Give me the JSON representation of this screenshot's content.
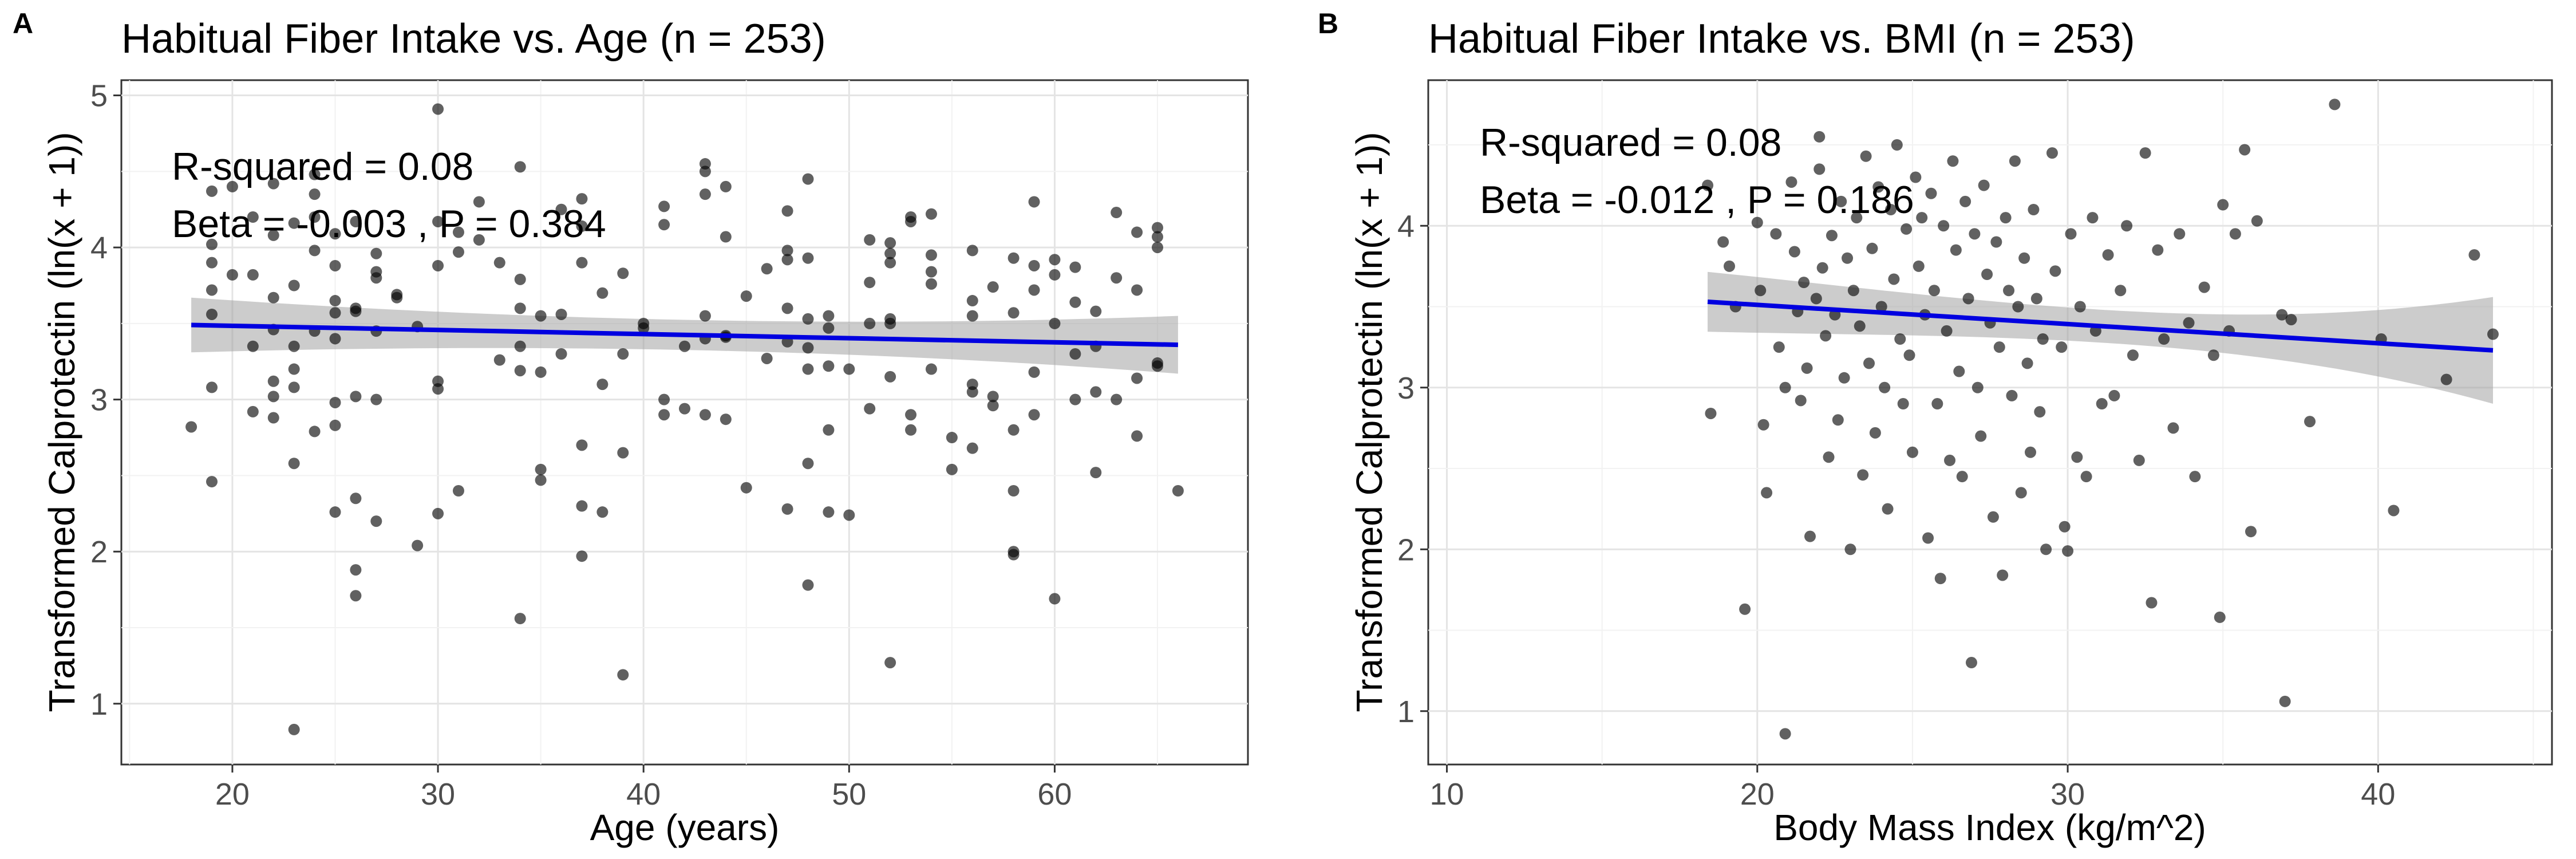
{
  "chart_data": [
    {
      "panel_label": "A",
      "type": "scatter",
      "title": "Habitual Fiber Intake vs. Age (n = 253)",
      "xlabel": "Age (years)",
      "ylabel": "Transformed Calprotectin (ln(x + 1))",
      "xlim": [
        14.6,
        69.4
      ],
      "ylim": [
        0.6,
        5.1
      ],
      "xticks": [
        20,
        30,
        40,
        50,
        60
      ],
      "yticks": [
        1,
        2,
        3,
        4,
        5
      ],
      "grid": true,
      "annotations": [
        "R-squared = 0.08",
        "Beta = -0.003 , P =  0.384"
      ],
      "fit": {
        "x": [
          18,
          66
        ],
        "y": [
          3.49,
          3.36
        ],
        "ci_lower": [
          3.31,
          3.17
        ],
        "ci_upper": [
          3.67,
          3.55
        ]
      },
      "points": [
        [
          18,
          2.82
        ],
        [
          19,
          4.37
        ],
        [
          19,
          4.02
        ],
        [
          19,
          3.9
        ],
        [
          19,
          3.72
        ],
        [
          19,
          3.56
        ],
        [
          19,
          3.08
        ],
        [
          19,
          2.46
        ],
        [
          20,
          4.4
        ],
        [
          20,
          3.82
        ],
        [
          21,
          4.2
        ],
        [
          21,
          3.82
        ],
        [
          21,
          3.35
        ],
        [
          21,
          2.92
        ],
        [
          22,
          4.08
        ],
        [
          22,
          4.42
        ],
        [
          22,
          3.67
        ],
        [
          22,
          3.46
        ],
        [
          22,
          3.12
        ],
        [
          22,
          3.02
        ],
        [
          22,
          2.88
        ],
        [
          23,
          4.16
        ],
        [
          23,
          3.75
        ],
        [
          23,
          3.35
        ],
        [
          23,
          3.2
        ],
        [
          23,
          3.08
        ],
        [
          23,
          2.58
        ],
        [
          23,
          0.83
        ],
        [
          24,
          4.48
        ],
        [
          24,
          4.35
        ],
        [
          24,
          4.2
        ],
        [
          24,
          3.98
        ],
        [
          24,
          3.45
        ],
        [
          24,
          2.79
        ],
        [
          25,
          4.09
        ],
        [
          25,
          3.88
        ],
        [
          25,
          3.65
        ],
        [
          25,
          3.57
        ],
        [
          25,
          3.4
        ],
        [
          25,
          2.98
        ],
        [
          25,
          2.83
        ],
        [
          25,
          2.26
        ],
        [
          26,
          4.17
        ],
        [
          26,
          3.6
        ],
        [
          26,
          3.58
        ],
        [
          26,
          3.02
        ],
        [
          26,
          2.35
        ],
        [
          26,
          1.88
        ],
        [
          26,
          1.71
        ],
        [
          27,
          3.96
        ],
        [
          27,
          3.84
        ],
        [
          27,
          3.8
        ],
        [
          27,
          3.45
        ],
        [
          27,
          3.0
        ],
        [
          27,
          2.2
        ],
        [
          28,
          3.69
        ],
        [
          28,
          3.67
        ],
        [
          29,
          3.48
        ],
        [
          29,
          2.04
        ],
        [
          30,
          4.91
        ],
        [
          30,
          4.17
        ],
        [
          30,
          3.88
        ],
        [
          30,
          3.12
        ],
        [
          30,
          3.07
        ],
        [
          30,
          2.25
        ],
        [
          31,
          4.1
        ],
        [
          31,
          3.97
        ],
        [
          31,
          2.4
        ],
        [
          32,
          4.3
        ],
        [
          32,
          4.05
        ],
        [
          33,
          3.9
        ],
        [
          33,
          3.26
        ],
        [
          34,
          4.53
        ],
        [
          34,
          3.79
        ],
        [
          34,
          3.6
        ],
        [
          34,
          3.35
        ],
        [
          34,
          3.19
        ],
        [
          34,
          1.56
        ],
        [
          35,
          3.55
        ],
        [
          35,
          3.18
        ],
        [
          35,
          2.54
        ],
        [
          35,
          2.47
        ],
        [
          36,
          4.25
        ],
        [
          36,
          3.56
        ],
        [
          36,
          3.3
        ],
        [
          37,
          4.32
        ],
        [
          37,
          4.14
        ],
        [
          37,
          3.9
        ],
        [
          37,
          2.7
        ],
        [
          37,
          2.3
        ],
        [
          37,
          1.97
        ],
        [
          38,
          3.7
        ],
        [
          38,
          3.1
        ],
        [
          38,
          2.26
        ],
        [
          39,
          3.83
        ],
        [
          39,
          3.3
        ],
        [
          39,
          2.65
        ],
        [
          39,
          1.19
        ],
        [
          40,
          3.5
        ],
        [
          40,
          3.47
        ],
        [
          41,
          4.27
        ],
        [
          41,
          4.15
        ],
        [
          41,
          3.0
        ],
        [
          41,
          2.9
        ],
        [
          42,
          3.35
        ],
        [
          42,
          2.94
        ],
        [
          43,
          4.55
        ],
        [
          43,
          4.5
        ],
        [
          43,
          4.35
        ],
        [
          43,
          3.55
        ],
        [
          43,
          3.4
        ],
        [
          43,
          2.9
        ],
        [
          44,
          4.4
        ],
        [
          44,
          4.07
        ],
        [
          44,
          3.42
        ],
        [
          44,
          3.41
        ],
        [
          44,
          2.87
        ],
        [
          45,
          3.68
        ],
        [
          45,
          2.42
        ],
        [
          46,
          3.86
        ],
        [
          46,
          3.27
        ],
        [
          47,
          4.24
        ],
        [
          47,
          3.98
        ],
        [
          47,
          3.92
        ],
        [
          47,
          3.6
        ],
        [
          47,
          3.38
        ],
        [
          47,
          2.28
        ],
        [
          48,
          4.45
        ],
        [
          48,
          3.93
        ],
        [
          48,
          3.53
        ],
        [
          48,
          3.34
        ],
        [
          48,
          3.2
        ],
        [
          48,
          2.58
        ],
        [
          48,
          1.78
        ],
        [
          49,
          3.55
        ],
        [
          49,
          3.47
        ],
        [
          49,
          3.22
        ],
        [
          49,
          2.8
        ],
        [
          49,
          2.26
        ],
        [
          50,
          3.2
        ],
        [
          50,
          2.24
        ],
        [
          51,
          4.05
        ],
        [
          51,
          3.77
        ],
        [
          51,
          3.5
        ],
        [
          51,
          2.94
        ],
        [
          52,
          4.03
        ],
        [
          52,
          3.96
        ],
        [
          52,
          3.9
        ],
        [
          52,
          3.53
        ],
        [
          52,
          3.5
        ],
        [
          52,
          3.15
        ],
        [
          52,
          1.27
        ],
        [
          53,
          4.2
        ],
        [
          53,
          4.17
        ],
        [
          53,
          2.9
        ],
        [
          53,
          2.8
        ],
        [
          54,
          4.22
        ],
        [
          54,
          3.95
        ],
        [
          54,
          3.84
        ],
        [
          54,
          3.76
        ],
        [
          54,
          3.2
        ],
        [
          55,
          2.75
        ],
        [
          55,
          2.54
        ],
        [
          56,
          3.98
        ],
        [
          56,
          3.65
        ],
        [
          56,
          3.55
        ],
        [
          56,
          3.1
        ],
        [
          56,
          3.05
        ],
        [
          56,
          2.68
        ],
        [
          57,
          3.74
        ],
        [
          57,
          3.02
        ],
        [
          57,
          2.96
        ],
        [
          58,
          3.93
        ],
        [
          58,
          3.57
        ],
        [
          58,
          2.8
        ],
        [
          58,
          2.4
        ],
        [
          58,
          2.0
        ],
        [
          58,
          1.98
        ],
        [
          59,
          4.3
        ],
        [
          59,
          3.88
        ],
        [
          59,
          3.72
        ],
        [
          59,
          3.18
        ],
        [
          59,
          2.9
        ],
        [
          60,
          3.92
        ],
        [
          60,
          3.82
        ],
        [
          60,
          3.5
        ],
        [
          60,
          1.69
        ],
        [
          61,
          3.87
        ],
        [
          61,
          3.64
        ],
        [
          61,
          3.3
        ],
        [
          61,
          3.0
        ],
        [
          62,
          3.58
        ],
        [
          62,
          3.35
        ],
        [
          62,
          3.05
        ],
        [
          62,
          2.52
        ],
        [
          63,
          4.23
        ],
        [
          63,
          3.8
        ],
        [
          63,
          3.0
        ],
        [
          64,
          4.1
        ],
        [
          64,
          3.72
        ],
        [
          64,
          3.14
        ],
        [
          64,
          2.76
        ],
        [
          65,
          4.13
        ],
        [
          65,
          4.07
        ],
        [
          65,
          4.0
        ],
        [
          65,
          3.24
        ],
        [
          65,
          3.22
        ],
        [
          66,
          2.4
        ]
      ]
    },
    {
      "panel_label": "B",
      "type": "scatter",
      "title": "Habitual Fiber Intake vs. BMI (n = 253)",
      "xlabel": "Body Mass Index (kg/m^2)",
      "ylabel": "Transformed Calprotectin (ln(x + 1))",
      "xlim": [
        9.4,
        45.6
      ],
      "ylim": [
        0.67,
        4.9
      ],
      "xticks": [
        10,
        20,
        30,
        40
      ],
      "yticks": [
        1,
        2,
        3,
        4
      ],
      "grid": true,
      "annotations": [
        "R-squared = 0.08",
        "Beta = -0.012 , P =  0.186"
      ],
      "fit": {
        "x": [
          18.4,
          43.7
        ],
        "y": [
          3.53,
          3.23
        ],
        "ci_lower": [
          3.35,
          2.9
        ],
        "ci_upper": [
          3.72,
          3.56
        ]
      },
      "points": [
        [
          18.4,
          4.25
        ],
        [
          18.5,
          2.84
        ],
        [
          18.9,
          3.9
        ],
        [
          19.1,
          3.75
        ],
        [
          19.3,
          3.5
        ],
        [
          19.6,
          1.63
        ],
        [
          20.0,
          4.02
        ],
        [
          20.1,
          3.6
        ],
        [
          20.2,
          2.77
        ],
        [
          20.3,
          2.35
        ],
        [
          20.6,
          3.95
        ],
        [
          20.7,
          3.25
        ],
        [
          20.9,
          3.0
        ],
        [
          20.9,
          0.86
        ],
        [
          21.1,
          4.27
        ],
        [
          21.2,
          3.84
        ],
        [
          21.3,
          3.47
        ],
        [
          21.4,
          2.92
        ],
        [
          21.5,
          3.65
        ],
        [
          21.6,
          3.12
        ],
        [
          21.7,
          2.08
        ],
        [
          21.9,
          3.55
        ],
        [
          22.0,
          4.35
        ],
        [
          22.0,
          4.55
        ],
        [
          22.1,
          3.74
        ],
        [
          22.2,
          3.32
        ],
        [
          22.3,
          2.57
        ],
        [
          22.4,
          3.94
        ],
        [
          22.5,
          3.45
        ],
        [
          22.6,
          2.8
        ],
        [
          22.7,
          4.15
        ],
        [
          22.8,
          3.06
        ],
        [
          22.9,
          3.8
        ],
        [
          23.0,
          2.0
        ],
        [
          23.1,
          3.6
        ],
        [
          23.2,
          4.05
        ],
        [
          23.3,
          3.38
        ],
        [
          23.4,
          2.46
        ],
        [
          23.5,
          4.43
        ],
        [
          23.6,
          3.15
        ],
        [
          23.7,
          3.86
        ],
        [
          23.8,
          2.72
        ],
        [
          23.9,
          4.24
        ],
        [
          24.0,
          3.5
        ],
        [
          24.1,
          3.0
        ],
        [
          24.2,
          2.25
        ],
        [
          24.3,
          4.1
        ],
        [
          24.4,
          3.67
        ],
        [
          24.5,
          4.5
        ],
        [
          24.6,
          3.3
        ],
        [
          24.7,
          2.9
        ],
        [
          24.8,
          3.98
        ],
        [
          24.9,
          3.2
        ],
        [
          25.0,
          2.6
        ],
        [
          25.1,
          4.3
        ],
        [
          25.2,
          3.75
        ],
        [
          25.3,
          4.05
        ],
        [
          25.4,
          3.45
        ],
        [
          25.5,
          2.07
        ],
        [
          25.6,
          4.2
        ],
        [
          25.7,
          3.6
        ],
        [
          25.8,
          2.9
        ],
        [
          25.9,
          1.82
        ],
        [
          26.0,
          4.0
        ],
        [
          26.1,
          3.35
        ],
        [
          26.2,
          2.55
        ],
        [
          26.3,
          4.4
        ],
        [
          26.4,
          3.85
        ],
        [
          26.5,
          3.1
        ],
        [
          26.6,
          2.45
        ],
        [
          26.7,
          4.15
        ],
        [
          26.8,
          3.55
        ],
        [
          26.9,
          1.3
        ],
        [
          27.0,
          3.95
        ],
        [
          27.1,
          3.0
        ],
        [
          27.2,
          2.7
        ],
        [
          27.3,
          4.25
        ],
        [
          27.4,
          3.7
        ],
        [
          27.5,
          3.4
        ],
        [
          27.6,
          2.2
        ],
        [
          27.7,
          3.9
        ],
        [
          27.8,
          3.25
        ],
        [
          27.9,
          1.84
        ],
        [
          28.0,
          4.05
        ],
        [
          28.1,
          3.6
        ],
        [
          28.2,
          2.95
        ],
        [
          28.3,
          4.4
        ],
        [
          28.4,
          3.5
        ],
        [
          28.5,
          2.35
        ],
        [
          28.6,
          3.8
        ],
        [
          28.7,
          3.15
        ],
        [
          28.8,
          2.6
        ],
        [
          28.9,
          4.1
        ],
        [
          29.0,
          3.55
        ],
        [
          29.1,
          2.85
        ],
        [
          29.2,
          3.3
        ],
        [
          29.3,
          2.0
        ],
        [
          29.5,
          4.45
        ],
        [
          29.6,
          3.72
        ],
        [
          29.8,
          3.25
        ],
        [
          29.9,
          2.14
        ],
        [
          30.0,
          1.99
        ],
        [
          30.1,
          3.95
        ],
        [
          30.3,
          2.57
        ],
        [
          30.4,
          3.5
        ],
        [
          30.6,
          2.45
        ],
        [
          30.8,
          4.05
        ],
        [
          30.9,
          3.35
        ],
        [
          31.1,
          2.9
        ],
        [
          31.3,
          3.82
        ],
        [
          31.5,
          2.95
        ],
        [
          31.7,
          3.6
        ],
        [
          31.9,
          4.0
        ],
        [
          32.1,
          3.2
        ],
        [
          32.3,
          2.55
        ],
        [
          32.5,
          4.45
        ],
        [
          32.7,
          1.67
        ],
        [
          32.9,
          3.85
        ],
        [
          33.1,
          3.3
        ],
        [
          33.4,
          2.75
        ],
        [
          33.6,
          3.95
        ],
        [
          33.9,
          3.4
        ],
        [
          34.1,
          2.45
        ],
        [
          34.4,
          3.62
        ],
        [
          34.7,
          3.2
        ],
        [
          34.9,
          1.58
        ],
        [
          35.0,
          4.13
        ],
        [
          35.2,
          3.35
        ],
        [
          35.4,
          3.95
        ],
        [
          35.7,
          4.47
        ],
        [
          35.9,
          2.11
        ],
        [
          36.1,
          4.03
        ],
        [
          36.9,
          3.45
        ],
        [
          37.0,
          1.06
        ],
        [
          37.2,
          3.42
        ],
        [
          37.8,
          2.79
        ],
        [
          38.6,
          4.75
        ],
        [
          40.1,
          3.3
        ],
        [
          40.5,
          2.24
        ],
        [
          42.2,
          3.05
        ],
        [
          43.1,
          3.82
        ],
        [
          43.7,
          3.33
        ]
      ]
    }
  ]
}
